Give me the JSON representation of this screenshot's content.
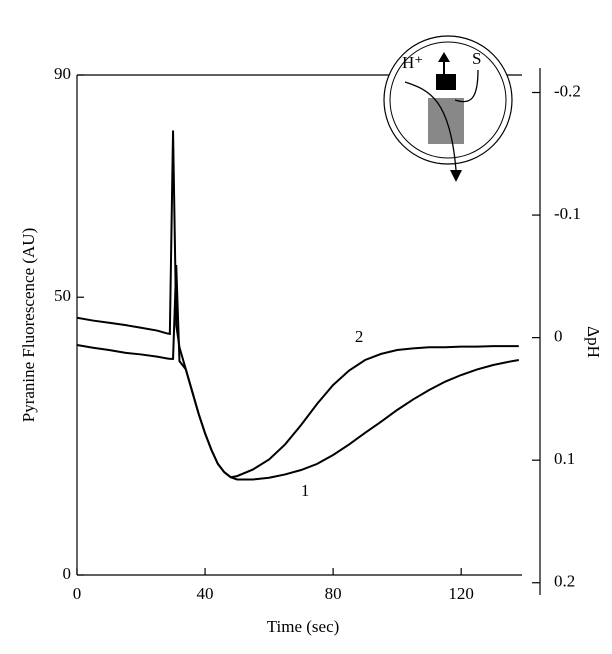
{
  "chart_data": {
    "type": "line",
    "x_label": "Time (sec)",
    "y_label": "Pyranine Fluorescence (AU)",
    "y2_label": "ΔpH",
    "x": [
      0,
      5,
      10,
      15,
      20,
      25,
      28,
      29,
      30,
      31,
      32,
      34,
      36,
      38,
      40,
      42,
      44,
      46,
      48,
      50,
      55,
      60,
      65,
      70,
      75,
      80,
      85,
      90,
      95,
      100,
      105,
      110,
      115,
      120,
      125,
      130,
      135,
      138
    ],
    "series": [
      {
        "name": "2",
        "color": "#000000",
        "values": [
          46.3,
          45.8,
          45.4,
          45,
          44.5,
          44,
          43.5,
          43.4,
          80,
          45,
          41,
          37,
          33,
          29,
          25.5,
          22.5,
          20,
          18.5,
          17.6,
          17.8,
          19,
          20.8,
          23.5,
          27,
          30.8,
          34.2,
          36.8,
          38.7,
          39.8,
          40.5,
          40.8,
          41,
          41,
          41.1,
          41.1,
          41.2,
          41.2,
          41.2
        ]
      },
      {
        "name": "1",
        "color": "#000000",
        "values": [
          41.4,
          40.9,
          40.5,
          40,
          39.7,
          39.3,
          39,
          38.9,
          38.9,
          55.8,
          38.5,
          37,
          33,
          29,
          25.5,
          22.5,
          20,
          18.5,
          17.6,
          17.2,
          17.2,
          17.5,
          18.1,
          18.9,
          20,
          21.6,
          23.5,
          25.6,
          27.6,
          29.7,
          31.6,
          33.3,
          34.8,
          36,
          37,
          37.8,
          38.4,
          38.7
        ]
      }
    ],
    "xlim": [
      0,
      139
    ],
    "xticks": [
      0,
      40,
      80,
      120
    ],
    "ylim": [
      0,
      90
    ],
    "yticks": [
      0,
      50,
      90
    ],
    "y2lim": [
      0.21,
      -0.22
    ],
    "y2ticks": [
      -0.2,
      -0.1,
      0,
      0.1,
      0.2
    ],
    "grid": false,
    "inset_labels": [
      "H⁺",
      "S"
    ]
  }
}
